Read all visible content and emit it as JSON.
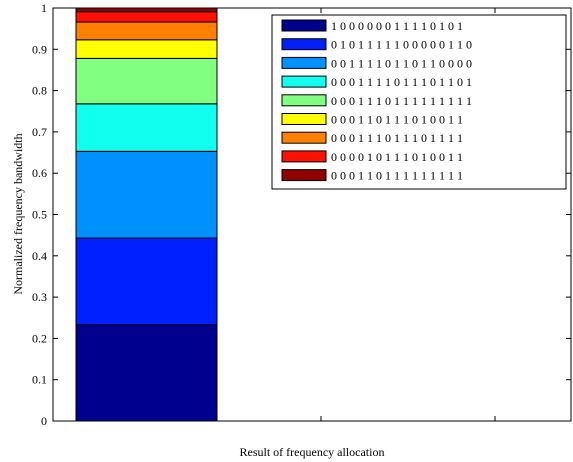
{
  "chart_data": {
    "type": "bar",
    "stacked": true,
    "xlabel": "Result of frequency allocation",
    "ylabel": "Normalized frequency bandwidth",
    "ylim": [
      0,
      1
    ],
    "yticks": [
      "0",
      "0.1",
      "0.2",
      "0.3",
      "0.4",
      "0.5",
      "0.6",
      "0.7",
      "0.8",
      "0.9",
      "1"
    ],
    "grid": false,
    "legend_position": "top-right",
    "series": [
      {
        "name": "1 0 0 0 0 0 0 1 1 1 1 0 1 0 1",
        "value": 0.233,
        "color": "#00008F"
      },
      {
        "name": "0 1 0 1 1 1 1 1 0 0 0 0 0 1 1 0",
        "value": 0.21,
        "color": "#0020FF"
      },
      {
        "name": "0 0 1 1 1 1 0 1 1 0 1 1 0 0 0 0",
        "value": 0.21,
        "color": "#0090FF"
      },
      {
        "name": "0 0 0 1 1 1 1 0 1 1 1 0 1 1 0 1",
        "value": 0.115,
        "color": "#10FFEF"
      },
      {
        "name": "0 0 0 1 1 1 0 1 1 1 1 1 1 1 1 1",
        "value": 0.11,
        "color": "#80FF80"
      },
      {
        "name": "0 0 0 1 1 0 1 1 1 0 1 0 0 1 1",
        "value": 0.045,
        "color": "#FFFF00"
      },
      {
        "name": "0 0 0 1 1 1 0 1 1 1 0 1 1 1 1",
        "value": 0.043,
        "color": "#FF8000"
      },
      {
        "name": "0 0 0 0 1 0 1 1 1 0 1 0 0 1 1",
        "value": 0.025,
        "color": "#FF1000"
      },
      {
        "name": "0 0 0 1 1 0 1 1 1 1 1 1 1 1 1",
        "value": 0.009,
        "color": "#8F0000"
      }
    ]
  }
}
